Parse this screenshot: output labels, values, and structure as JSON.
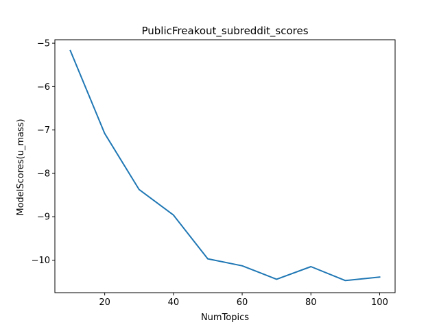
{
  "chart_data": {
    "type": "line",
    "title": "PublicFreakout_subreddit_scores",
    "xlabel": "NumTopics",
    "ylabel": "ModelScores(u_mass)",
    "xlim": [
      5.5,
      104.5
    ],
    "ylim": [
      -10.75,
      -4.92
    ],
    "xticks": [
      20,
      40,
      60,
      80,
      100
    ],
    "xtick_labels": [
      "20",
      "40",
      "60",
      "80",
      "100"
    ],
    "yticks": [
      -10,
      -9,
      -8,
      -7,
      -6,
      -5
    ],
    "ytick_labels": [
      "−10",
      "−9",
      "−8",
      "−7",
      "−6",
      "−5"
    ],
    "grid": false,
    "series": [
      {
        "color": "#1f77b4",
        "x": [
          10,
          20,
          30,
          40,
          50,
          60,
          70,
          80,
          90,
          100
        ],
        "y": [
          -5.17,
          -7.08,
          -8.37,
          -8.96,
          -9.97,
          -10.13,
          -10.44,
          -10.15,
          -10.47,
          -10.39
        ]
      }
    ]
  }
}
